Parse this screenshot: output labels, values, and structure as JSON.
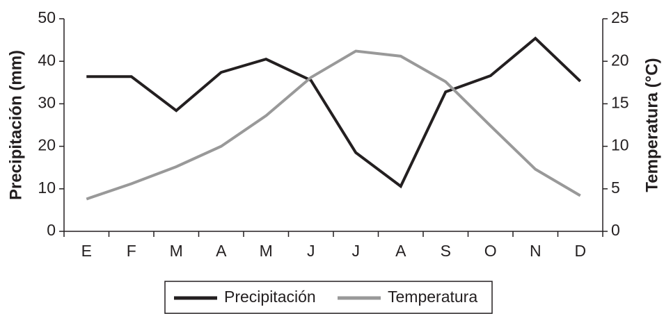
{
  "chart_data": {
    "type": "line",
    "categories": [
      "E",
      "F",
      "M",
      "A",
      "M",
      "J",
      "J",
      "A",
      "S",
      "O",
      "N",
      "D"
    ],
    "y_label": "Precipitación (mm)",
    "y2_label": "Temperatura (°C)",
    "series": [
      {
        "name": "Precipitación",
        "color": "#231f20",
        "values": [
          36.4,
          36.4,
          28.4,
          37.4,
          40.5,
          35.5,
          18.5,
          10.6,
          32.8,
          36.6,
          45.4,
          35.3
        ]
      },
      {
        "name": "Temperatura",
        "color": "#999999",
        "axis": "y2",
        "values": [
          3.8,
          5.6,
          7.6,
          10.0,
          13.6,
          18.1,
          21.2,
          20.6,
          17.6,
          12.4,
          7.3,
          4.2
        ]
      }
    ],
    "ylim": [
      0,
      50
    ],
    "yticks": [
      0,
      10,
      20,
      30,
      40,
      50
    ],
    "y2lim": [
      0,
      25
    ],
    "y2ticks": [
      0,
      5,
      10,
      15,
      20,
      25
    ],
    "grid": false,
    "legend": "bottom"
  }
}
